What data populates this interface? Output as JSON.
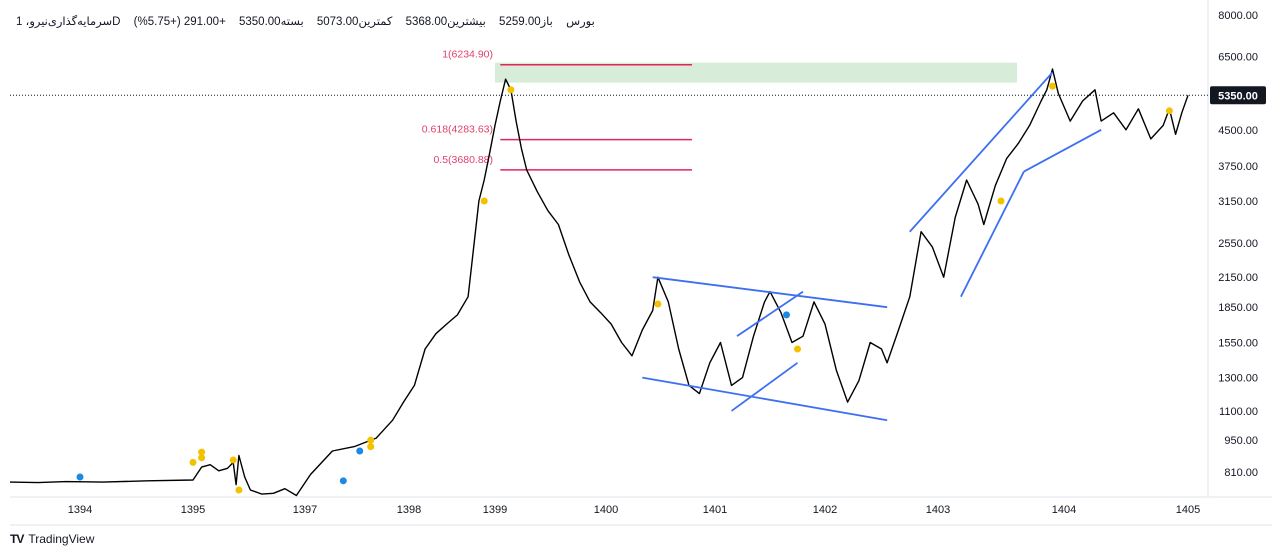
{
  "header": {
    "symbol": "سرمایه‌گذاری‌نیرو، 1D",
    "exchange": "بورس",
    "open": "باز5259.00",
    "high": "بیشترین5368.00",
    "low": "کمترین5073.00",
    "close": "بسته5350.00",
    "change": "+291.00 (+5.75%)"
  },
  "brand": {
    "logo_text": "TV",
    "name": "TradingView"
  },
  "chart_data": {
    "type": "line",
    "price_scale": "log",
    "y_ticks": [
      "8000.00",
      "6500.00",
      "5350.00",
      "4500.00",
      "3750.00",
      "3150.00",
      "2550.00",
      "2150.00",
      "1850.00",
      "1550.00",
      "1300.00",
      "1100.00",
      "950.00",
      "810.00"
    ],
    "y_tick_values": [
      8000,
      6500,
      4500,
      3750,
      3150,
      2550,
      2150,
      1850,
      1550,
      1300,
      1100,
      950,
      810
    ],
    "x_ticks": [
      "1394",
      "1395",
      "1397",
      "1398",
      "1399",
      "1400",
      "1401",
      "1402",
      "1403",
      "1404",
      "1405"
    ],
    "x_tick_years": [
      1394,
      1395,
      1397,
      1398,
      1399,
      1400,
      1401,
      1402,
      1403,
      1404,
      1405
    ],
    "x_tick_positions": [
      1394.0,
      1395.0,
      1396.95,
      1397.9,
      1398.7,
      1399.75,
      1400.8,
      1401.8,
      1402.8,
      1403.9,
      1404.9
    ],
    "current_price": 5350,
    "current_price_label": "5350.00",
    "series": [
      {
        "points": [
          [
            1393.0,
            770
          ],
          [
            1393.4,
            768
          ],
          [
            1393.8,
            772
          ],
          [
            1394.2,
            770
          ],
          [
            1394.6,
            775
          ],
          [
            1395.0,
            778
          ],
          [
            1395.15,
            830
          ],
          [
            1395.3,
            840
          ],
          [
            1395.45,
            815
          ],
          [
            1395.6,
            825
          ],
          [
            1395.7,
            850
          ],
          [
            1395.75,
            760
          ],
          [
            1395.8,
            880
          ],
          [
            1395.9,
            790
          ],
          [
            1396.0,
            740
          ],
          [
            1396.2,
            725
          ],
          [
            1396.4,
            728
          ],
          [
            1396.6,
            745
          ],
          [
            1396.8,
            720
          ],
          [
            1397.0,
            800
          ],
          [
            1397.2,
            900
          ],
          [
            1397.4,
            920
          ],
          [
            1397.6,
            960
          ],
          [
            1397.75,
            1050
          ],
          [
            1397.85,
            1150
          ],
          [
            1397.95,
            1250
          ],
          [
            1398.05,
            1500
          ],
          [
            1398.15,
            1620
          ],
          [
            1398.25,
            1700
          ],
          [
            1398.35,
            1780
          ],
          [
            1398.45,
            1950
          ],
          [
            1398.55,
            3150
          ],
          [
            1398.6,
            3500
          ],
          [
            1398.65,
            4000
          ],
          [
            1398.7,
            4600
          ],
          [
            1398.75,
            5200
          ],
          [
            1398.8,
            5800
          ],
          [
            1398.85,
            5500
          ],
          [
            1398.9,
            4700
          ],
          [
            1398.95,
            4100
          ],
          [
            1399.0,
            3680
          ],
          [
            1399.1,
            3300
          ],
          [
            1399.2,
            3000
          ],
          [
            1399.3,
            2800
          ],
          [
            1399.4,
            2400
          ],
          [
            1399.5,
            2100
          ],
          [
            1399.6,
            1900
          ],
          [
            1399.7,
            1800
          ],
          [
            1399.8,
            1700
          ],
          [
            1399.9,
            1550
          ],
          [
            1400.0,
            1450
          ],
          [
            1400.1,
            1650
          ],
          [
            1400.2,
            1820
          ],
          [
            1400.25,
            2150
          ],
          [
            1400.35,
            1900
          ],
          [
            1400.45,
            1500
          ],
          [
            1400.55,
            1250
          ],
          [
            1400.65,
            1200
          ],
          [
            1400.75,
            1400
          ],
          [
            1400.85,
            1550
          ],
          [
            1400.95,
            1250
          ],
          [
            1401.05,
            1300
          ],
          [
            1401.15,
            1600
          ],
          [
            1401.25,
            1900
          ],
          [
            1401.3,
            2000
          ],
          [
            1401.4,
            1800
          ],
          [
            1401.5,
            1550
          ],
          [
            1401.6,
            1600
          ],
          [
            1401.7,
            1900
          ],
          [
            1401.8,
            1700
          ],
          [
            1401.9,
            1350
          ],
          [
            1402.0,
            1150
          ],
          [
            1402.1,
            1280
          ],
          [
            1402.2,
            1550
          ],
          [
            1402.3,
            1500
          ],
          [
            1402.35,
            1400
          ],
          [
            1402.45,
            1650
          ],
          [
            1402.55,
            1950
          ],
          [
            1402.65,
            2700
          ],
          [
            1402.75,
            2500
          ],
          [
            1402.85,
            2150
          ],
          [
            1402.95,
            2900
          ],
          [
            1403.05,
            3500
          ],
          [
            1403.15,
            3100
          ],
          [
            1403.2,
            2800
          ],
          [
            1403.3,
            3400
          ],
          [
            1403.4,
            3900
          ],
          [
            1403.5,
            4200
          ],
          [
            1403.6,
            4600
          ],
          [
            1403.7,
            5200
          ],
          [
            1403.75,
            5500
          ],
          [
            1403.8,
            6100
          ],
          [
            1403.85,
            5400
          ],
          [
            1403.95,
            4700
          ],
          [
            1404.05,
            5200
          ],
          [
            1404.15,
            5500
          ],
          [
            1404.2,
            4700
          ],
          [
            1404.3,
            4900
          ],
          [
            1404.4,
            4500
          ],
          [
            1404.5,
            5000
          ],
          [
            1404.6,
            4300
          ],
          [
            1404.7,
            4600
          ],
          [
            1404.75,
            5000
          ],
          [
            1404.8,
            4400
          ],
          [
            1404.85,
            4900
          ],
          [
            1404.9,
            5350
          ]
        ]
      }
    ],
    "fibonacci": [
      {
        "label": "1(6234.90)",
        "value": 6234.9
      },
      {
        "label": "0.618(4283.63)",
        "value": 4283.63
      },
      {
        "label": "0.5(3680.88)",
        "value": 3680.88
      }
    ],
    "supply_zone": {
      "low": 5700,
      "high": 6300
    },
    "trendlines": [
      [
        [
          1400.1,
          1300
        ],
        [
          1402.35,
          1050
        ]
      ],
      [
        [
          1400.2,
          2150
        ],
        [
          1402.35,
          1850
        ]
      ],
      [
        [
          1400.95,
          1100
        ],
        [
          1401.55,
          1400
        ]
      ],
      [
        [
          1401.0,
          1600
        ],
        [
          1401.6,
          2000
        ]
      ],
      [
        [
          1402.55,
          2700
        ],
        [
          1403.8,
          6000
        ]
      ],
      [
        [
          1403.0,
          1950
        ],
        [
          1403.55,
          3650
        ]
      ],
      [
        [
          1403.55,
          3650
        ],
        [
          1404.2,
          4500
        ]
      ]
    ],
    "markers": [
      {
        "t": 1394.0,
        "v": 790,
        "color": "#1e88e5"
      },
      {
        "t": 1395.0,
        "v": 850,
        "color": "#f2c200"
      },
      {
        "t": 1395.15,
        "v": 870,
        "color": "#f2c200"
      },
      {
        "t": 1395.15,
        "v": 895,
        "color": "#f2c200"
      },
      {
        "t": 1395.7,
        "v": 860,
        "color": "#f2c200"
      },
      {
        "t": 1395.8,
        "v": 740,
        "color": "#f2c200"
      },
      {
        "t": 1397.3,
        "v": 775,
        "color": "#1e88e5"
      },
      {
        "t": 1397.45,
        "v": 900,
        "color": "#1e88e5"
      },
      {
        "t": 1397.55,
        "v": 920,
        "color": "#f2c200"
      },
      {
        "t": 1397.55,
        "v": 950,
        "color": "#f2c200"
      },
      {
        "t": 1398.6,
        "v": 3150,
        "color": "#f2c200"
      },
      {
        "t": 1398.85,
        "v": 5500,
        "color": "#f2c200"
      },
      {
        "t": 1400.25,
        "v": 1880,
        "color": "#f2c200"
      },
      {
        "t": 1401.45,
        "v": 1780,
        "color": "#1e88e5"
      },
      {
        "t": 1401.55,
        "v": 1500,
        "color": "#f2c200"
      },
      {
        "t": 1403.35,
        "v": 3150,
        "color": "#f2c200"
      },
      {
        "t": 1403.8,
        "v": 5600,
        "color": "#f2c200"
      },
      {
        "t": 1404.75,
        "v": 4950,
        "color": "#f2c200"
      }
    ]
  }
}
